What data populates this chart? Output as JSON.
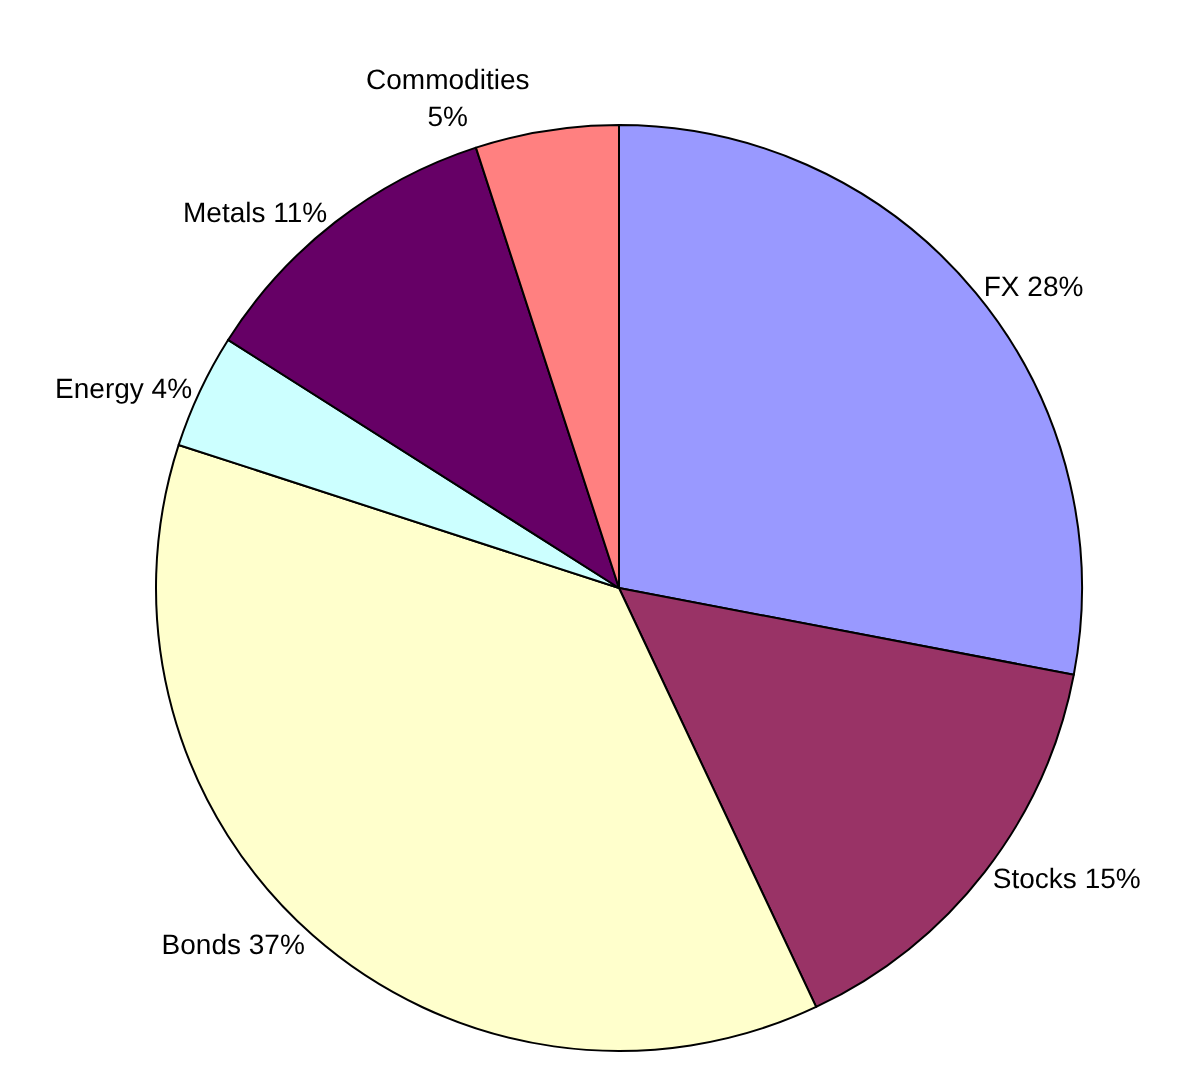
{
  "chart_data": {
    "type": "pie",
    "categories": [
      "FX",
      "Stocks",
      "Bonds",
      "Energy",
      "Metals",
      "Commodities"
    ],
    "values": [
      28,
      15,
      37,
      4,
      11,
      5
    ],
    "value_labels": [
      "28%",
      "15%",
      "37%",
      "4%",
      "11%",
      "5%"
    ],
    "colors": [
      "#9999ff",
      "#993366",
      "#ffffcc",
      "#ccffff",
      "#660066",
      "#ff8080"
    ],
    "legend": false
  }
}
